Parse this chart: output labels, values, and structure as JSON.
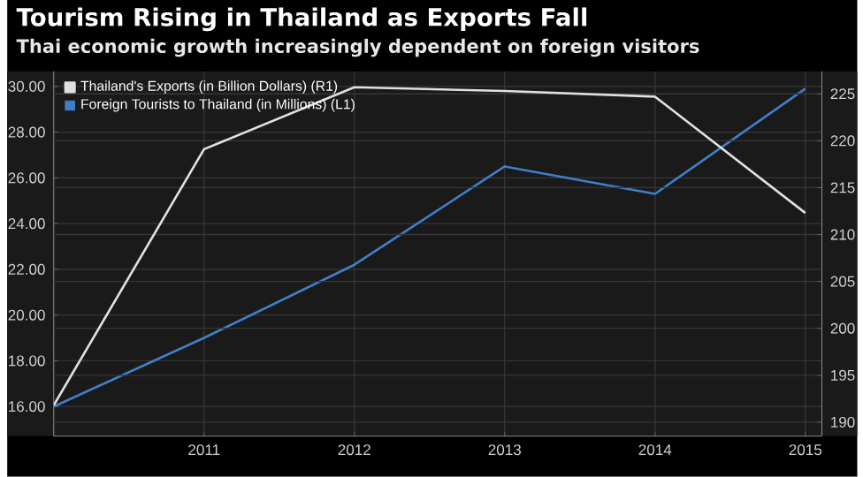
{
  "chart_data": {
    "type": "line",
    "title": "Tourism Rising in Thailand as Exports Fall",
    "subtitle": "Thai economic growth increasingly dependent on foreign visitors",
    "x": [
      2010,
      2011,
      2012,
      2013,
      2014,
      2015
    ],
    "series": [
      {
        "name": "Thailand's Exports (in Billion Dollars) (R1)",
        "color": "#e0e0e0",
        "axis": "y2",
        "values": [
          191.8,
          219.1,
          225.7,
          225.3,
          224.7,
          212.3
        ]
      },
      {
        "name": "Foreign Tourists to Thailand (in Millions) (L1)",
        "color": "#3f7fc8",
        "values": [
          16.0,
          19.0,
          22.2,
          26.5,
          25.3,
          29.9
        ]
      }
    ],
    "xlim": [
      2010,
      2015.11
    ],
    "xticks": [
      2011,
      2012,
      2013,
      2014,
      2015
    ],
    "ylim": [
      14.7,
      30.66
    ],
    "yticks": [
      {
        "value": 16,
        "label": "16.00"
      },
      {
        "value": 18,
        "label": "18.00"
      },
      {
        "value": 20,
        "label": "20.00"
      },
      {
        "value": 22,
        "label": "22.00"
      },
      {
        "value": 24,
        "label": "24.00"
      },
      {
        "value": 26,
        "label": "26.00"
      },
      {
        "value": 28,
        "label": "28.00"
      },
      {
        "value": 30,
        "label": "30.00"
      }
    ],
    "y2lim": [
      188.5,
      227.4
    ],
    "y2ticks": [
      190,
      195,
      200,
      205,
      210,
      215,
      220,
      225
    ],
    "grid": true,
    "legend": "top left",
    "marker": "none",
    "line_style": "solid"
  }
}
